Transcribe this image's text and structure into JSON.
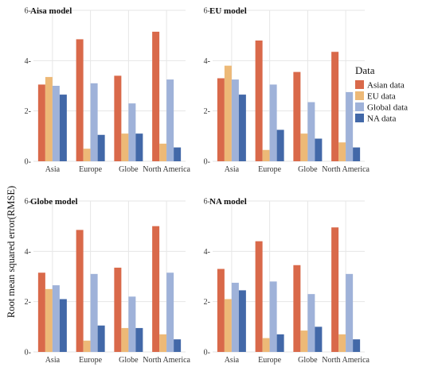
{
  "chart_data": {
    "type": "bar",
    "ylabel": "Root mean squared error(RMSE)",
    "ylim": [
      0,
      6
    ],
    "yticks": [
      0,
      2,
      4,
      6
    ],
    "tick_suffix": "-",
    "grid": true,
    "categories": [
      "Asia",
      "Europe",
      "Globe",
      "North America"
    ],
    "legend": {
      "title": "Data",
      "position": "right",
      "entries": [
        {
          "name": "Asian data",
          "color": "#D9694A"
        },
        {
          "name": "EU data",
          "color": "#EDB977"
        },
        {
          "name": "Global data",
          "color": "#9FB2D9"
        },
        {
          "name": "NA data",
          "color": "#4268A8"
        }
      ]
    },
    "panels": [
      {
        "title": "Aisa model",
        "series": [
          {
            "name": "Asian data",
            "values": [
              3.05,
              4.85,
              3.4,
              5.15
            ]
          },
          {
            "name": "EU data",
            "values": [
              3.35,
              0.5,
              1.1,
              0.7
            ]
          },
          {
            "name": "Global data",
            "values": [
              3.0,
              3.1,
              2.3,
              3.25
            ]
          },
          {
            "name": "NA data",
            "values": [
              2.65,
              1.05,
              1.1,
              0.55
            ]
          }
        ]
      },
      {
        "title": "EU model",
        "series": [
          {
            "name": "Asian data",
            "values": [
              3.3,
              4.8,
              3.55,
              4.35
            ]
          },
          {
            "name": "EU data",
            "values": [
              3.8,
              0.45,
              1.1,
              0.75
            ]
          },
          {
            "name": "Global data",
            "values": [
              3.25,
              3.05,
              2.35,
              2.75
            ]
          },
          {
            "name": "NA data",
            "values": [
              2.65,
              1.25,
              0.9,
              0.55
            ]
          }
        ]
      },
      {
        "title": "Globe model",
        "series": [
          {
            "name": "Asian data",
            "values": [
              3.15,
              4.85,
              3.35,
              5.0
            ]
          },
          {
            "name": "EU data",
            "values": [
              2.5,
              0.45,
              0.95,
              0.7
            ]
          },
          {
            "name": "Global data",
            "values": [
              2.65,
              3.1,
              2.2,
              3.15
            ]
          },
          {
            "name": "NA data",
            "values": [
              2.1,
              1.05,
              0.95,
              0.5
            ]
          }
        ]
      },
      {
        "title": "NA model",
        "series": [
          {
            "name": "Asian data",
            "values": [
              3.3,
              4.4,
              3.45,
              4.95
            ]
          },
          {
            "name": "EU data",
            "values": [
              2.1,
              0.55,
              0.85,
              0.7
            ]
          },
          {
            "name": "Global data",
            "values": [
              2.75,
              2.8,
              2.3,
              3.1
            ]
          },
          {
            "name": "NA data",
            "values": [
              2.45,
              0.7,
              1.0,
              0.5
            ]
          }
        ]
      }
    ]
  }
}
